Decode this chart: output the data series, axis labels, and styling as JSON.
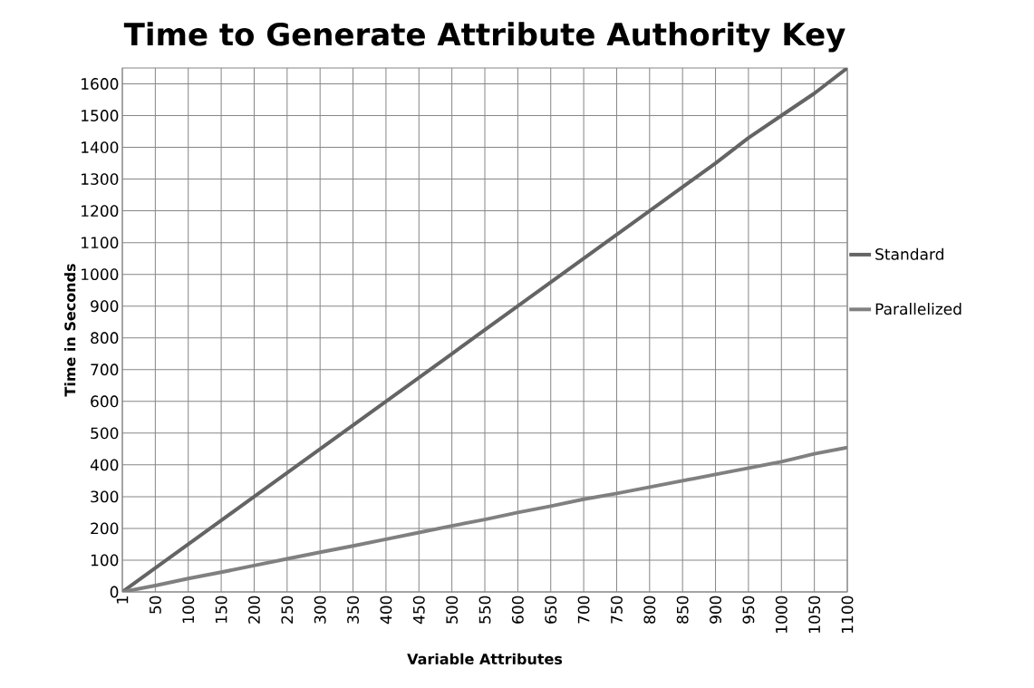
{
  "chart_data": {
    "type": "line",
    "title": "Time to Generate Attribute Authority Key",
    "xlabel": "Variable Attributes",
    "ylabel": "Time in Seconds",
    "categories": [
      "1",
      "50",
      "100",
      "150",
      "200",
      "250",
      "300",
      "350",
      "400",
      "450",
      "500",
      "550",
      "600",
      "650",
      "700",
      "750",
      "800",
      "850",
      "900",
      "950",
      "1000",
      "1050",
      "1100"
    ],
    "series": [
      {
        "name": "Standard",
        "color": "#646464",
        "values": [
          0,
          75,
          150,
          225,
          300,
          375,
          450,
          525,
          600,
          675,
          750,
          825,
          900,
          975,
          1050,
          1125,
          1200,
          1275,
          1350,
          1430,
          1500,
          1570,
          1650
        ]
      },
      {
        "name": "Parallelized",
        "color": "#808080",
        "values": [
          0,
          20,
          42,
          62,
          83,
          104,
          125,
          145,
          166,
          187,
          208,
          228,
          250,
          270,
          292,
          310,
          330,
          350,
          370,
          390,
          410,
          435,
          455
        ]
      }
    ],
    "ylim": [
      0,
      1650
    ],
    "yticks": [
      0,
      100,
      200,
      300,
      400,
      500,
      600,
      700,
      800,
      900,
      1000,
      1100,
      1200,
      1300,
      1400,
      1500,
      1600
    ],
    "grid": true,
    "legend": "right",
    "marker": "none",
    "line_style": "solid"
  }
}
